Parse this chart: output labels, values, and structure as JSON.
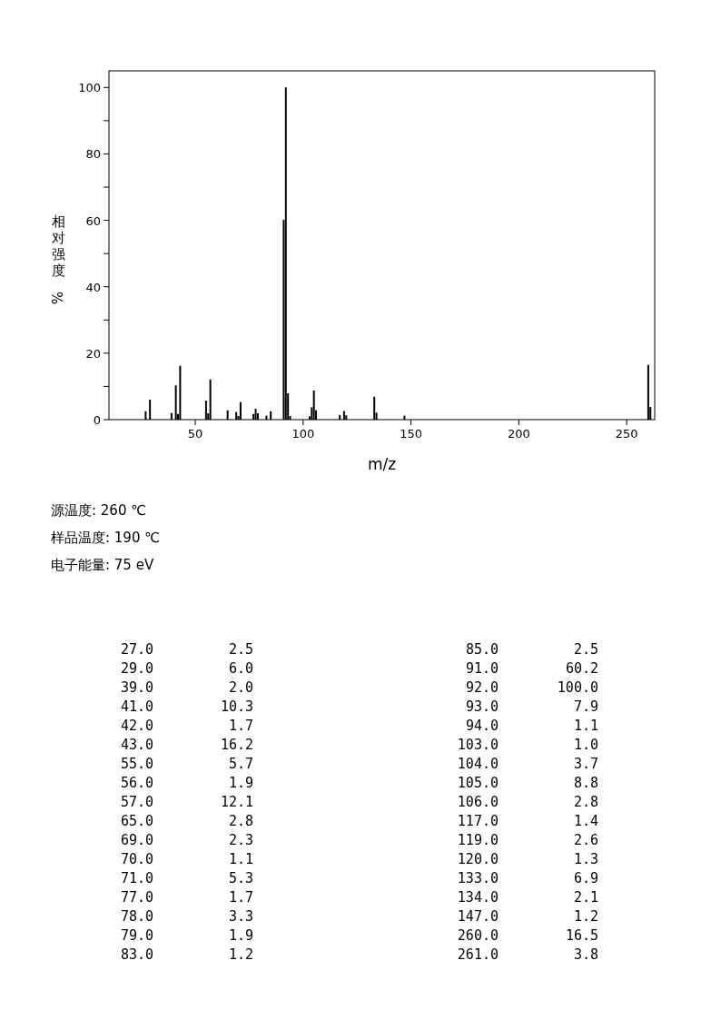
{
  "chart_data": [
    {
      "type": "bar",
      "xlabel": "m/z",
      "ylabel": "相对强度%",
      "color": "#000000",
      "x": [
        27,
        29,
        39,
        41,
        42,
        43,
        55,
        56,
        57,
        65,
        69,
        70,
        71,
        77,
        78,
        79,
        83,
        85,
        91,
        92,
        93,
        94,
        103,
        104,
        105,
        106,
        117,
        119,
        120,
        133,
        134,
        147,
        260,
        261
      ],
      "values": [
        2.5,
        6.0,
        2.0,
        10.3,
        1.7,
        16.2,
        5.7,
        1.9,
        12.1,
        2.8,
        2.3,
        1.1,
        5.3,
        1.7,
        3.3,
        1.9,
        1.2,
        2.5,
        60.2,
        100.0,
        7.9,
        1.1,
        1.0,
        3.7,
        8.8,
        2.8,
        1.4,
        2.6,
        1.3,
        6.9,
        2.1,
        1.2,
        16.5,
        3.8
      ],
      "xlim": [
        10,
        263
      ],
      "ylim": [
        0,
        105
      ],
      "xticks": [
        50,
        100,
        150,
        200,
        250
      ],
      "yticks": [
        0,
        {
          "value": 10,
          "label": null
        },
        20,
        {
          "value": 30,
          "label": null
        },
        40,
        {
          "value": 50,
          "label": null
        },
        60,
        {
          "value": 70,
          "label": null
        },
        80,
        {
          "value": 90,
          "label": null
        },
        100
      ],
      "annotations": [
        "源温度: 260 ℃",
        "样品温度: 190 ℃",
        "电子能量: 75 eV"
      ]
    },
    {
      "type": "other",
      "annotations": [
        "27.0",
        "2.5",
        "29.0",
        "6.0",
        "39.0",
        "2.0",
        "41.0",
        "10.3",
        "42.0",
        "1.7",
        "43.0",
        "16.2",
        "55.0",
        "5.7",
        "56.0",
        "1.9",
        "57.0",
        "12.1",
        "65.0",
        "2.8",
        "69.0",
        "2.3",
        "70.0",
        "1.1",
        "71.0",
        "5.3",
        "77.0",
        "1.7",
        "78.0",
        "3.3",
        "79.0",
        "1.9",
        "83.0",
        "1.2",
        "85.0",
        "2.5",
        "91.0",
        "60.2",
        "92.0",
        "100.0",
        "93.0",
        "7.9",
        "94.0",
        "1.1",
        "103.0",
        "1.0",
        "104.0",
        "3.7",
        "105.0",
        "8.8",
        "106.0",
        "2.8",
        "117.0",
        "1.4",
        "119.0",
        "2.6",
        "120.0",
        "1.3",
        "133.0",
        "6.9",
        "134.0",
        "2.1",
        "147.0",
        "1.2",
        "260.0",
        "16.5",
        "261.0",
        "3.8"
      ]
    }
  ]
}
